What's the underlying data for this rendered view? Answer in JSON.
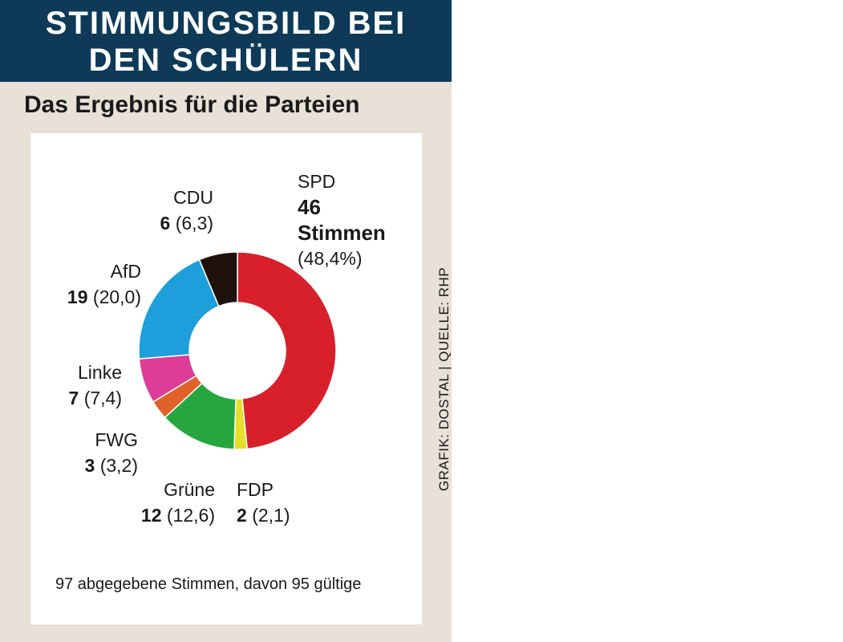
{
  "header": {
    "title_line1": "STIMMUNGSBILD BEI",
    "title_line2": "DEN SCHÜLERN",
    "subtitle": "Das Ergebnis für die Parteien"
  },
  "credit": "GRAFIK: DOSTAL | QUELLE: RHP",
  "footnote": "97 abgegebene Stimmen, davon 95 gültige",
  "colors": {
    "header_bg": "#0e3a58",
    "page_bg": "#e7e1d8"
  },
  "chart_data": {
    "type": "pie",
    "title": "Das Ergebnis für die Parteien",
    "categories": [
      "SPD",
      "FDP",
      "Grüne",
      "FWG",
      "Linke",
      "AfD",
      "CDU"
    ],
    "values": [
      46,
      2,
      12,
      3,
      7,
      19,
      6
    ],
    "percent": [
      48.4,
      2.1,
      12.6,
      3.2,
      7.4,
      20.0,
      6.3
    ],
    "colors": [
      "#d7202a",
      "#e6df2a",
      "#27a640",
      "#e0622a",
      "#dd3d96",
      "#1e9edb",
      "#1f110c"
    ],
    "labels": {
      "SPD": {
        "name": "SPD",
        "value": "46",
        "unit": "Stimmen",
        "pct": "(48,4%)"
      },
      "FDP": {
        "name": "FDP",
        "value": "2",
        "pct": "(2,1)"
      },
      "Gruene": {
        "name": "Grüne",
        "value": "12",
        "pct": "(12,6)"
      },
      "FWG": {
        "name": "FWG",
        "value": "3",
        "pct": "(3,2)"
      },
      "Linke": {
        "name": "Linke",
        "value": "7",
        "pct": "(7,4)"
      },
      "AfD": {
        "name": "AfD",
        "value": "19",
        "pct": "(20,0)"
      },
      "CDU": {
        "name": "CDU",
        "value": "6",
        "pct": "(6,3)"
      }
    }
  }
}
